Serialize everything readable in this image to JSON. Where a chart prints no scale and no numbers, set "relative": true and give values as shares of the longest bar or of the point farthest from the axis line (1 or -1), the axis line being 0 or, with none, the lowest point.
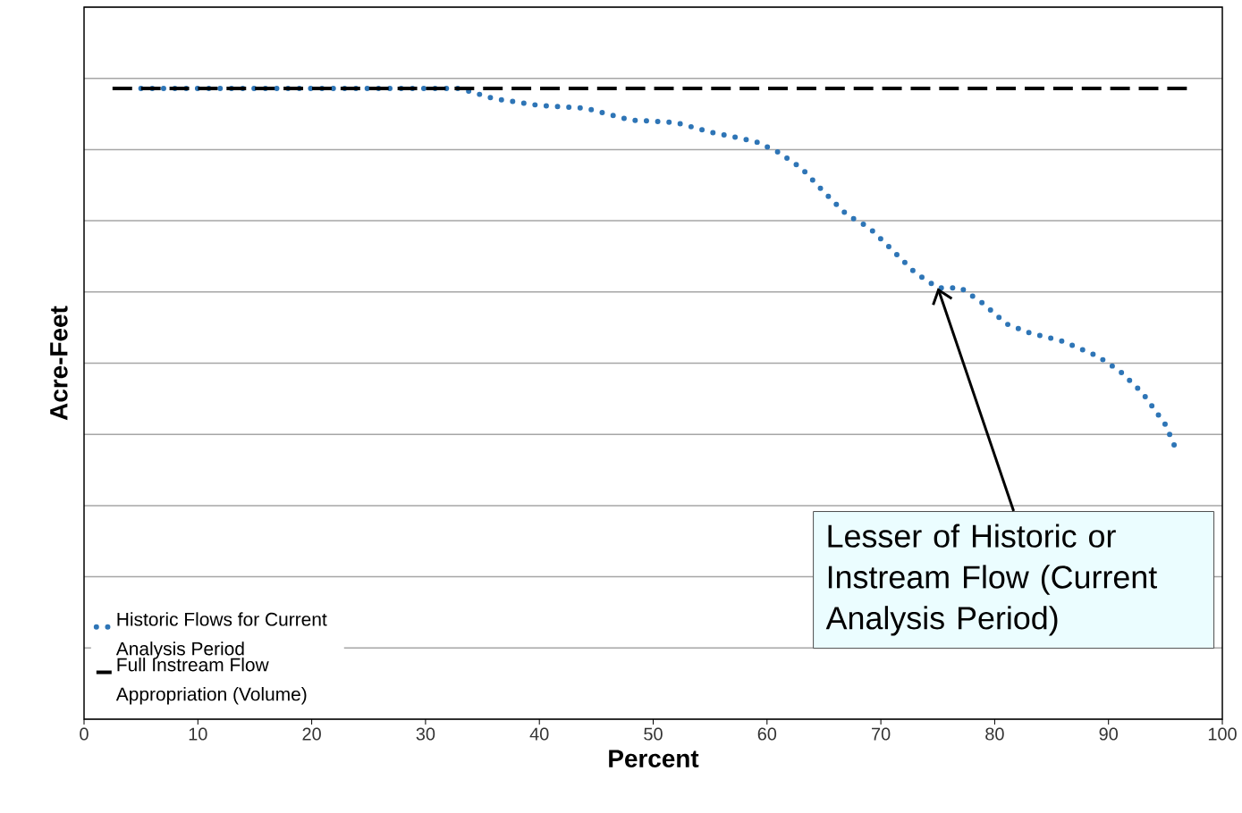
{
  "chart_data": {
    "type": "line",
    "relative": true,
    "xlabel": "Percent",
    "ylabel": "Acre-Feet",
    "xlim": [
      0,
      100
    ],
    "xticks": [
      0,
      10,
      20,
      30,
      40,
      50,
      60,
      70,
      80,
      90,
      100
    ],
    "grid": "y",
    "legend": "bottom left",
    "series": [
      {
        "name": "Historic Flows for Current Analysis Period",
        "color": "#2e75b6",
        "line_style": "dotted",
        "x": [
          5,
          33,
          36,
          40,
          44,
          48,
          52,
          55,
          59,
          61,
          63,
          65,
          67,
          69,
          71,
          73,
          75,
          77,
          79,
          81,
          83,
          86,
          89,
          91,
          93,
          95,
          96
        ],
        "values": [
          1.0,
          1.0,
          0.984,
          0.973,
          0.969,
          0.95,
          0.946,
          0.931,
          0.916,
          0.899,
          0.874,
          0.836,
          0.8,
          0.779,
          0.744,
          0.708,
          0.684,
          0.684,
          0.659,
          0.627,
          0.613,
          0.599,
          0.576,
          0.552,
          0.517,
          0.467,
          0.425
        ]
      },
      {
        "name": "Full Instream Flow Appropriation (Volume)",
        "color": "#000000",
        "line_style": "dashed",
        "x": [
          2.5,
          97
        ],
        "values": [
          1.0,
          1.0
        ]
      }
    ],
    "annotations": [
      {
        "text": "Lesser of Historic or Instream Flow (Current Analysis Period)",
        "x": 75,
        "y": 0.684
      }
    ]
  }
}
